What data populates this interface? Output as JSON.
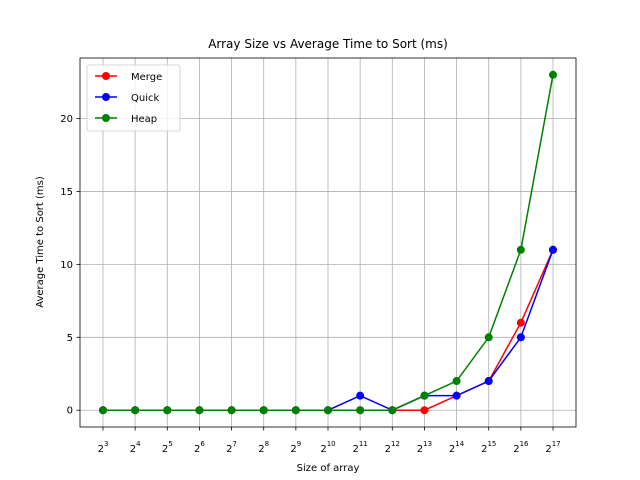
{
  "chart_data": {
    "type": "line",
    "title": "Array Size vs Average Time to Sort (ms)",
    "xlabel": "Size of array",
    "ylabel": "Average Time to Sort (ms)",
    "x_base": "2",
    "x_exponents": [
      "3",
      "4",
      "5",
      "6",
      "7",
      "8",
      "9",
      "10",
      "11",
      "12",
      "13",
      "14",
      "15",
      "16",
      "17"
    ],
    "ylim": [
      -1.15,
      24.15
    ],
    "yticks": [
      0,
      5,
      10,
      15,
      20
    ],
    "grid": true,
    "legend_position": "top-left",
    "series": [
      {
        "name": "Merge",
        "color": "#ff0000",
        "values": [
          0,
          0,
          0,
          0,
          0,
          0,
          0,
          0,
          0,
          0,
          0,
          1,
          2,
          6,
          11
        ]
      },
      {
        "name": "Quick",
        "color": "#0000ff",
        "values": [
          0,
          0,
          0,
          0,
          0,
          0,
          0,
          0,
          1,
          0,
          1,
          1,
          2,
          5,
          11
        ]
      },
      {
        "name": "Heap",
        "color": "#008000",
        "values": [
          0,
          0,
          0,
          0,
          0,
          0,
          0,
          0,
          0,
          0,
          1,
          2,
          5,
          11,
          23
        ]
      }
    ]
  }
}
